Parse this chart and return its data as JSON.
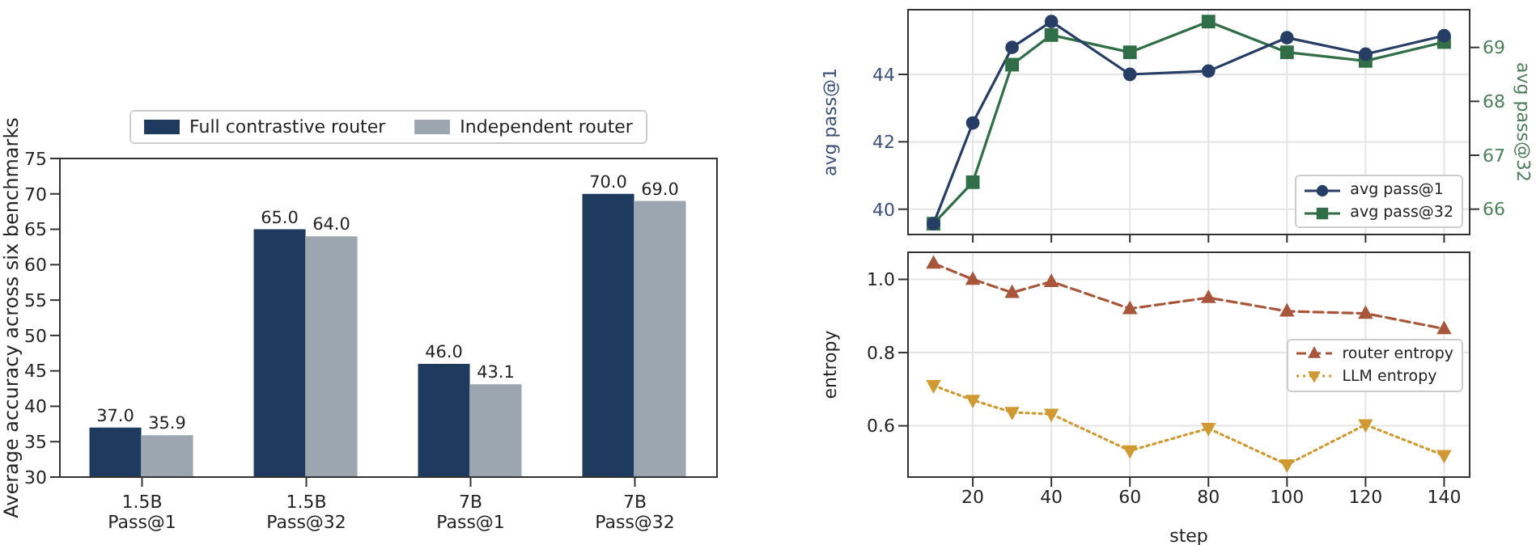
{
  "chart_data": [
    {
      "type": "bar",
      "ylabel": "Average accuracy across six benchmarks",
      "categories": [
        "1.5B\nPass@1",
        "1.5B\nPass@32",
        "7B\nPass@1",
        "7B\nPass@32"
      ],
      "series": [
        {
          "name": "Full contrastive router",
          "color": "#1f3a5f",
          "values": [
            37.0,
            65.0,
            46.0,
            70.0
          ],
          "value_labels": [
            "37.0",
            "65.0",
            "46.0",
            "70.0"
          ]
        },
        {
          "name": "Independent router",
          "color": "#9ca6b0",
          "values": [
            35.9,
            64.0,
            43.1,
            69.0
          ],
          "value_labels": [
            "35.9",
            "64.0",
            "43.1",
            "69.0"
          ]
        }
      ],
      "ylim": [
        30,
        75
      ],
      "yticks": [
        30,
        35,
        40,
        45,
        50,
        55,
        60,
        65,
        70,
        75
      ],
      "grid": false,
      "legend": "top"
    },
    {
      "type": "line",
      "ylabel": "avg pass@1",
      "y2label": "avg pass@32",
      "x": [
        10,
        20,
        30,
        40,
        60,
        80,
        100,
        120,
        140
      ],
      "series": [
        {
          "name": "avg pass@1",
          "color": "#263d66",
          "marker": "circle",
          "line_style": "solid",
          "values": [
            39.57,
            42.56,
            44.8,
            45.57,
            44.0,
            44.1,
            45.09,
            44.6,
            45.15
          ]
        },
        {
          "name": "avg pass@32",
          "color": "#2f6e47",
          "marker": "square",
          "line_style": "solid",
          "axis": "y2",
          "values": [
            65.73,
            66.5,
            68.68,
            69.23,
            68.91,
            69.48,
            68.91,
            68.75,
            69.1
          ]
        }
      ],
      "xlim": [
        3.5,
        146.5
      ],
      "xticks": [
        20,
        40,
        60,
        80,
        100,
        120,
        140
      ],
      "ylim": [
        39.25,
        45.92
      ],
      "yticks": [
        40,
        42,
        44
      ],
      "y2lim": [
        65.53,
        69.7
      ],
      "y2ticks": [
        66,
        67,
        68,
        69
      ],
      "tick_labels": "y",
      "grid": true,
      "legend": "bottom right"
    },
    {
      "type": "line",
      "xlabel": "step",
      "ylabel": "entropy",
      "x": [
        10,
        20,
        30,
        40,
        60,
        80,
        100,
        120,
        140
      ],
      "series": [
        {
          "name": "router entropy",
          "color": "#a9553a",
          "marker": "triangle",
          "line_style": "dashed",
          "values": [
            1.044,
            1.0,
            0.964,
            0.994,
            0.92,
            0.95,
            0.913,
            0.907,
            0.865
          ]
        },
        {
          "name": "LLM entropy",
          "color": "#d09a30",
          "marker": "triangle-down",
          "line_style": "dotted",
          "values": [
            0.71,
            0.67,
            0.637,
            0.632,
            0.532,
            0.593,
            0.494,
            0.603,
            0.519
          ]
        }
      ],
      "xlim": [
        3.5,
        146.5
      ],
      "xticks": [
        20,
        40,
        60,
        80,
        100,
        120,
        140
      ],
      "ylim": [
        0.46,
        1.074
      ],
      "yticks": [
        {
          "value": 0.6,
          "label": "0.6"
        },
        {
          "value": 0.8,
          "label": "0.8"
        },
        {
          "value": 1.0,
          "label": "1.0"
        }
      ],
      "grid": true,
      "legend": "right"
    }
  ]
}
